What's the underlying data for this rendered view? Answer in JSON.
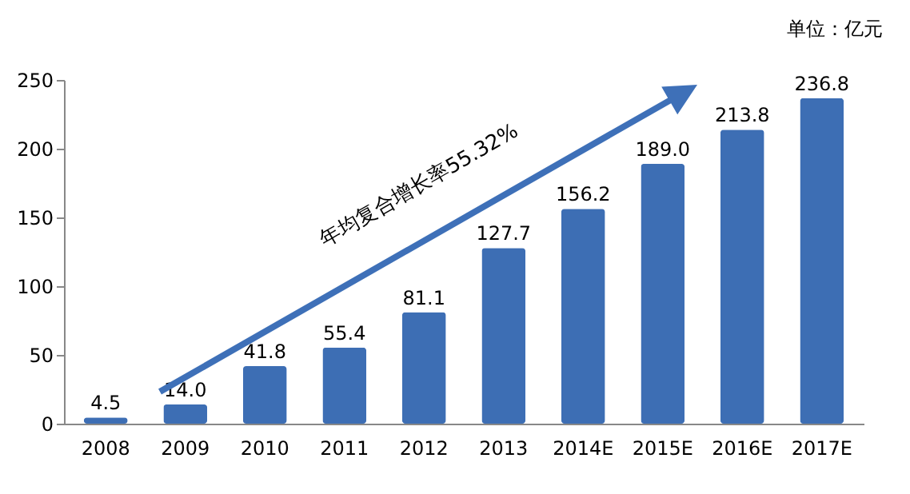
{
  "chart_data": {
    "type": "bar",
    "categories": [
      "2008",
      "2009",
      "2010",
      "2011",
      "2012",
      "2013",
      "2014E",
      "2015E",
      "2016E",
      "2017E"
    ],
    "values": [
      4.5,
      14.0,
      41.8,
      55.4,
      81.1,
      127.7,
      156.2,
      189.0,
      213.8,
      236.8
    ],
    "value_labels": [
      "4.5",
      "14.0",
      "41.8",
      "55.4",
      "81.1",
      "127.7",
      "156.2",
      "189.0",
      "213.8",
      "236.8"
    ],
    "color": "#3d6eb4",
    "ylim": [
      0,
      250
    ],
    "yticks": [
      0,
      50,
      100,
      150,
      200,
      250
    ],
    "grid": false,
    "annotations": [
      "单位：亿元",
      "年均复合增长率55.32%"
    ]
  }
}
